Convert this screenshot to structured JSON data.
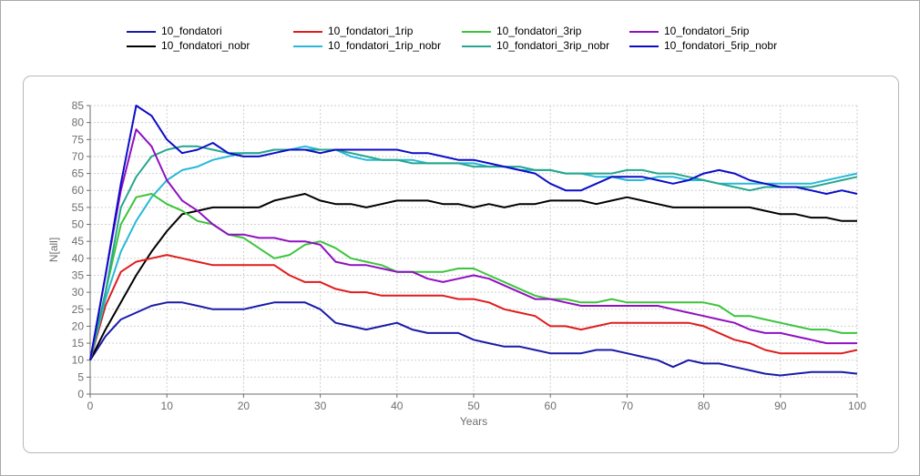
{
  "chart_data": {
    "type": "line",
    "xlabel": "Years",
    "ylabel": "N[all]",
    "xlim": [
      0,
      100
    ],
    "ylim": [
      0,
      85
    ],
    "x_ticks": [
      0,
      10,
      20,
      30,
      40,
      50,
      60,
      70,
      80,
      90,
      100
    ],
    "y_ticks": [
      0,
      5,
      10,
      15,
      20,
      25,
      30,
      35,
      40,
      45,
      50,
      55,
      60,
      65,
      70,
      75,
      80,
      85
    ],
    "grid": true,
    "legend_position": "top",
    "x": [
      0,
      2,
      4,
      6,
      8,
      10,
      12,
      14,
      16,
      18,
      20,
      22,
      24,
      26,
      28,
      30,
      32,
      34,
      36,
      38,
      40,
      42,
      44,
      46,
      48,
      50,
      52,
      54,
      56,
      58,
      60,
      62,
      64,
      66,
      68,
      70,
      72,
      74,
      76,
      78,
      80,
      82,
      84,
      86,
      88,
      90,
      92,
      94,
      96,
      98,
      100
    ],
    "series": [
      {
        "name": "10_fondatori",
        "color": "#1a1aa8",
        "values": [
          10,
          17,
          22,
          24,
          26,
          27,
          27,
          26,
          25,
          25,
          25,
          26,
          27,
          27,
          27,
          25,
          21,
          20,
          19,
          20,
          21,
          19,
          18,
          18,
          18,
          16,
          15,
          14,
          14,
          13,
          12,
          12,
          12,
          13,
          13,
          12,
          11,
          10,
          8,
          10,
          9,
          9,
          8,
          7,
          6,
          5.5,
          6,
          6.5,
          6.5,
          6.5,
          6
        ]
      },
      {
        "name": "10_fondatori_nobr",
        "color": "#000000",
        "values": [
          10,
          19,
          27,
          35,
          42,
          48,
          53,
          54,
          55,
          55,
          55,
          55,
          57,
          58,
          59,
          57,
          56,
          56,
          55,
          56,
          57,
          57,
          57,
          56,
          56,
          55,
          56,
          55,
          56,
          56,
          57,
          57,
          57,
          56,
          57,
          58,
          57,
          56,
          55,
          55,
          55,
          55,
          55,
          55,
          54,
          53,
          53,
          52,
          52,
          51,
          51
        ]
      },
      {
        "name": "10_fondatori_1rip",
        "color": "#e01c1c",
        "values": [
          10,
          26,
          36,
          39,
          40,
          41,
          40,
          39,
          38,
          38,
          38,
          38,
          38,
          35,
          33,
          33,
          31,
          30,
          30,
          29,
          29,
          29,
          29,
          29,
          28,
          28,
          27,
          25,
          24,
          23,
          20,
          20,
          19,
          20,
          21,
          21,
          21,
          21,
          21,
          21,
          20,
          18,
          16,
          15,
          13,
          12,
          12,
          12,
          12,
          12,
          13
        ]
      },
      {
        "name": "10_fondatori_1rip_nobr",
        "color": "#29b8d8",
        "values": [
          10,
          28,
          42,
          51,
          58,
          63,
          66,
          67,
          69,
          70,
          71,
          71,
          72,
          72,
          73,
          72,
          72,
          70,
          69,
          69,
          69,
          69,
          68,
          68,
          68,
          68,
          67,
          67,
          66,
          66,
          66,
          65,
          65,
          64,
          64,
          63,
          63,
          64,
          64,
          63,
          63,
          62,
          62,
          62,
          62,
          62,
          62,
          62,
          63,
          64,
          65
        ]
      },
      {
        "name": "10_fondatori_3rip",
        "color": "#3cc43c",
        "values": [
          10,
          30,
          50,
          58,
          59,
          56,
          54,
          51,
          50,
          47,
          46,
          43,
          40,
          41,
          44,
          45,
          43,
          40,
          39,
          38,
          36,
          36,
          36,
          36,
          37,
          37,
          35,
          33,
          31,
          29,
          28,
          28,
          27,
          27,
          28,
          27,
          27,
          27,
          27,
          27,
          27,
          26,
          23,
          23,
          22,
          21,
          20,
          19,
          19,
          18,
          18
        ]
      },
      {
        "name": "10_fondatori_3rip_nobr",
        "color": "#26a68e",
        "values": [
          10,
          30,
          55,
          64,
          70,
          72,
          73,
          73,
          72,
          71,
          71,
          71,
          72,
          72,
          72,
          72,
          72,
          71,
          70,
          69,
          69,
          68,
          68,
          68,
          68,
          67,
          67,
          67,
          67,
          66,
          66,
          65,
          65,
          65,
          65,
          66,
          66,
          65,
          65,
          64,
          63,
          62,
          61,
          60,
          61,
          61,
          61,
          61,
          62,
          63,
          64
        ]
      },
      {
        "name": "10_fondatori_5rip",
        "color": "#9010c0",
        "values": [
          10,
          35,
          60,
          78,
          73,
          63,
          57,
          54,
          50,
          47,
          47,
          46,
          46,
          45,
          45,
          44,
          39,
          38,
          38,
          37,
          36,
          36,
          34,
          33,
          34,
          35,
          34,
          32,
          30,
          28,
          28,
          27,
          26,
          26,
          26,
          26,
          26,
          26,
          25,
          24,
          23,
          22,
          21,
          19,
          18,
          18,
          17,
          16,
          15,
          15,
          15
        ]
      },
      {
        "name": "10_fondatori_5rip_nobr",
        "color": "#0c0cc8",
        "values": [
          10,
          35,
          62,
          85,
          82,
          75,
          71,
          72,
          74,
          71,
          70,
          70,
          71,
          72,
          72,
          71,
          72,
          72,
          72,
          72,
          72,
          71,
          71,
          70,
          69,
          69,
          68,
          67,
          66,
          65,
          62,
          60,
          60,
          62,
          64,
          64,
          64,
          63,
          62,
          63,
          65,
          66,
          65,
          63,
          62,
          61,
          61,
          60,
          59,
          60,
          59
        ]
      }
    ]
  }
}
